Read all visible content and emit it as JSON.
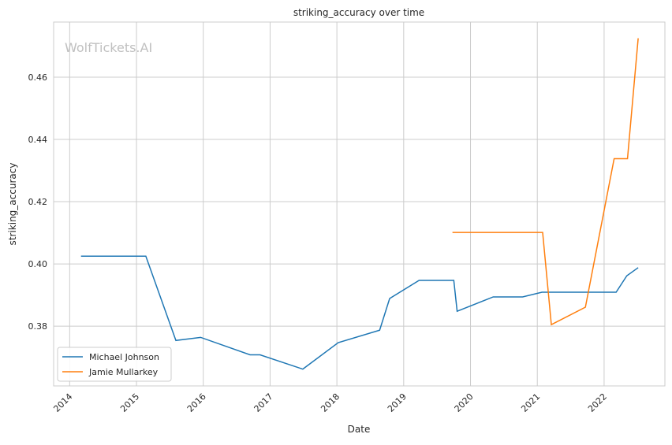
{
  "chart_data": {
    "type": "line",
    "title": "striking_accuracy over time",
    "xlabel": "Date",
    "ylabel": "striking_accuracy",
    "watermark": "WolfTickets.AI",
    "xlim": [
      2013.76,
      2022.91
    ],
    "ylim": [
      0.3608,
      0.4777
    ],
    "xticks": [
      "2014",
      "2015",
      "2016",
      "2017",
      "2018",
      "2019",
      "2020",
      "2021",
      "2022"
    ],
    "yticks": [
      "0.38",
      "0.40",
      "0.42",
      "0.44",
      "0.46"
    ],
    "grid": true,
    "legend_position": "lower-left",
    "series": [
      {
        "name": "Michael Johnson",
        "color": "#1f77b4",
        "x": [
          2014.17,
          2015.14,
          2015.59,
          2015.96,
          2016.7,
          2016.85,
          2017.49,
          2018.02,
          2018.64,
          2018.79,
          2019.23,
          2019.75,
          2019.8,
          2020.34,
          2020.78,
          2021.07,
          2022.18,
          2022.34,
          2022.51
        ],
        "y": [
          0.4025,
          0.4025,
          0.3754,
          0.3764,
          0.3708,
          0.3708,
          0.3662,
          0.3747,
          0.3787,
          0.3889,
          0.3947,
          0.3947,
          0.3848,
          0.3894,
          0.3894,
          0.3909,
          0.3909,
          0.3962,
          0.3988
        ]
      },
      {
        "name": "Jamie Mullarkey",
        "color": "#ff7f0e",
        "x": [
          2019.73,
          2021.08,
          2021.21,
          2021.72,
          2022.15,
          2022.35,
          2022.51
        ],
        "y": [
          0.4101,
          0.4101,
          0.3805,
          0.3861,
          0.4338,
          0.4338,
          0.4725
        ]
      }
    ]
  }
}
